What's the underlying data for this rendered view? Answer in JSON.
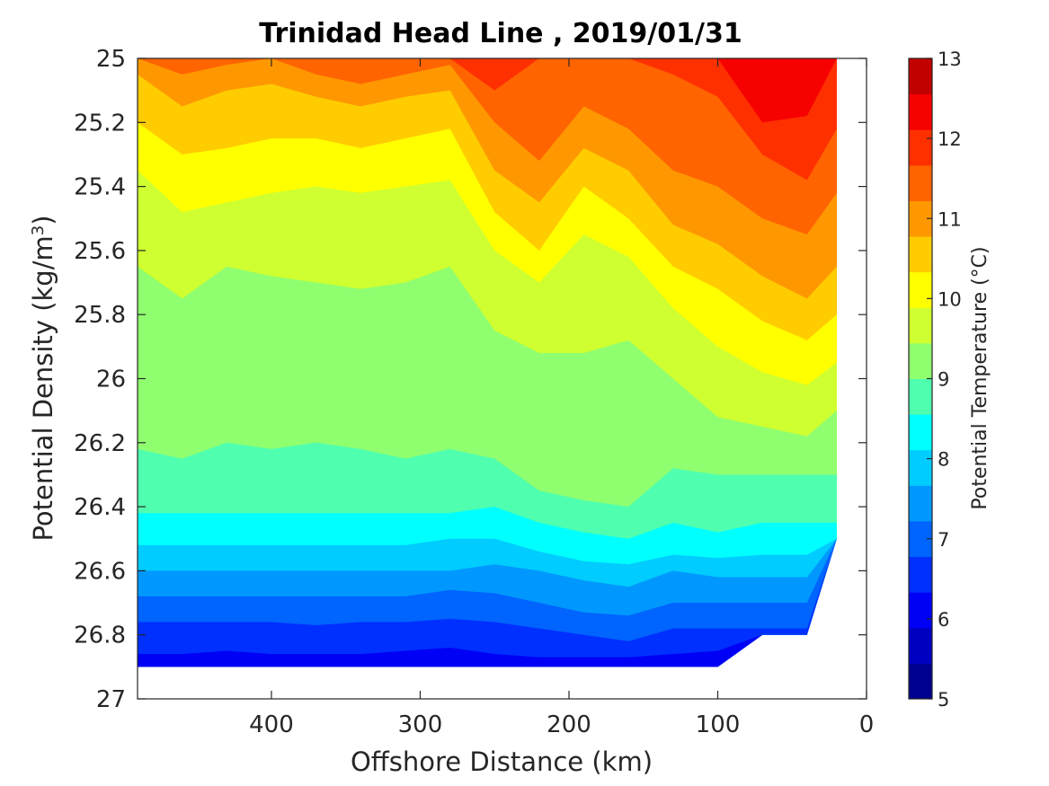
{
  "chart_data": {
    "type": "contour",
    "title": "Trinidad Head Line , 2019/01/31",
    "xlabel": "Offshore Distance (km)",
    "ylabel": "Potential Density (kg/m",
    "ylabel_sup": "3",
    "ylabel_close": ")",
    "x_reversed": true,
    "xlim": [
      0,
      490
    ],
    "ylim": [
      25,
      27
    ],
    "y_reversed": true,
    "xticks": [
      400,
      300,
      200,
      100,
      0
    ],
    "yticks": [
      25,
      25.2,
      25.4,
      25.6,
      25.8,
      26,
      26.2,
      26.4,
      26.6,
      26.8,
      27
    ],
    "ytick_labels": [
      "25",
      "25.2",
      "25.4",
      "25.6",
      "25.8",
      "26",
      "26.2",
      "26.4",
      "26.6",
      "26.8",
      "27"
    ],
    "colorbar": {
      "label": "Potential Temperature (°C)",
      "range": [
        5,
        13
      ],
      "ticks": [
        5,
        6,
        7,
        8,
        9,
        10,
        11,
        12,
        13
      ],
      "level_step": 0.5,
      "colors": [
        "#00008f",
        "#0000c3",
        "#0000f7",
        "#0030ff",
        "#0064ff",
        "#0098ff",
        "#00ccff",
        "#00ffff",
        "#4fffaf",
        "#8fff6f",
        "#cfff30",
        "#ffff00",
        "#ffcc00",
        "#ff9800",
        "#ff6400",
        "#ff3000",
        "#f70000",
        "#c30000"
      ]
    },
    "x": [
      490,
      460,
      430,
      400,
      370,
      340,
      310,
      280,
      250,
      220,
      190,
      160,
      130,
      100,
      70,
      40,
      20
    ],
    "isopycnals": [
      {
        "temp": 12.5,
        "y": [
          null,
          null,
          null,
          null,
          null,
          null,
          null,
          null,
          null,
          null,
          null,
          null,
          null,
          null,
          25.2,
          25.18,
          null
        ]
      },
      {
        "temp": 12.0,
        "y": [
          null,
          null,
          null,
          null,
          null,
          null,
          null,
          null,
          25.1,
          null,
          null,
          null,
          25.05,
          25.12,
          25.3,
          25.38,
          25.22
        ]
      },
      {
        "temp": 11.5,
        "y": [
          25.0,
          25.05,
          25.02,
          25.0,
          25.05,
          25.08,
          25.05,
          25.02,
          25.2,
          25.32,
          25.15,
          25.22,
          25.35,
          25.4,
          25.5,
          25.55,
          25.42
        ]
      },
      {
        "temp": 11.0,
        "y": [
          25.05,
          25.15,
          25.1,
          25.08,
          25.12,
          25.15,
          25.12,
          25.1,
          25.35,
          25.45,
          25.28,
          25.35,
          25.52,
          25.58,
          25.68,
          25.75,
          25.65
        ]
      },
      {
        "temp": 10.5,
        "y": [
          25.2,
          25.3,
          25.28,
          25.25,
          25.25,
          25.28,
          25.25,
          25.22,
          25.48,
          25.6,
          25.4,
          25.5,
          25.65,
          25.72,
          25.82,
          25.88,
          25.8
        ]
      },
      {
        "temp": 10.0,
        "y": [
          25.35,
          25.48,
          25.45,
          25.42,
          25.4,
          25.42,
          25.4,
          25.38,
          25.6,
          25.7,
          25.55,
          25.62,
          25.78,
          25.9,
          25.98,
          26.02,
          25.95
        ]
      },
      {
        "temp": 9.5,
        "y": [
          25.65,
          25.75,
          25.65,
          25.68,
          25.7,
          25.72,
          25.7,
          25.65,
          25.85,
          25.92,
          25.92,
          25.88,
          26.0,
          26.12,
          26.15,
          26.18,
          26.1
        ]
      },
      {
        "temp": 9.0,
        "y": [
          26.22,
          26.25,
          26.2,
          26.22,
          26.2,
          26.22,
          26.25,
          26.22,
          26.25,
          26.35,
          26.38,
          26.4,
          26.28,
          26.3,
          26.3,
          26.3,
          26.3
        ]
      },
      {
        "temp": 8.5,
        "y": [
          26.42,
          26.42,
          26.42,
          26.42,
          26.42,
          26.42,
          26.42,
          26.42,
          26.4,
          26.45,
          26.48,
          26.5,
          26.45,
          26.48,
          26.45,
          26.45,
          26.45
        ]
      },
      {
        "temp": 8.0,
        "y": [
          26.52,
          26.52,
          26.52,
          26.52,
          26.52,
          26.52,
          26.52,
          26.5,
          26.5,
          26.54,
          26.57,
          26.58,
          26.55,
          26.56,
          26.55,
          26.55,
          26.53
        ]
      },
      {
        "temp": 7.5,
        "y": [
          26.6,
          26.6,
          26.6,
          26.6,
          26.6,
          26.6,
          26.6,
          26.6,
          26.58,
          26.6,
          26.63,
          26.65,
          26.6,
          26.62,
          26.62,
          26.62,
          26.6
        ]
      },
      {
        "temp": 7.0,
        "y": [
          26.68,
          26.68,
          26.68,
          26.68,
          26.68,
          26.68,
          26.68,
          26.66,
          26.67,
          26.7,
          26.73,
          26.74,
          26.7,
          26.7,
          26.7,
          26.7,
          26.68
        ]
      },
      {
        "temp": 6.5,
        "y": [
          26.76,
          26.76,
          26.76,
          26.76,
          26.77,
          26.76,
          26.76,
          26.75,
          26.76,
          26.78,
          26.8,
          26.82,
          26.78,
          26.78,
          26.78,
          26.78,
          26.78
        ]
      },
      {
        "temp": 6.0,
        "y": [
          26.86,
          26.86,
          26.85,
          26.86,
          26.86,
          26.86,
          26.85,
          26.84,
          26.86,
          26.87,
          26.87,
          26.87,
          26.86,
          26.85,
          26.85,
          26.85,
          26.85
        ]
      }
    ],
    "bottom_limit": [
      26.9,
      26.9,
      26.9,
      26.9,
      26.9,
      26.9,
      26.9,
      26.9,
      26.9,
      26.9,
      26.9,
      26.9,
      26.9,
      26.9,
      26.8,
      26.8,
      26.5
    ],
    "grid": false
  }
}
